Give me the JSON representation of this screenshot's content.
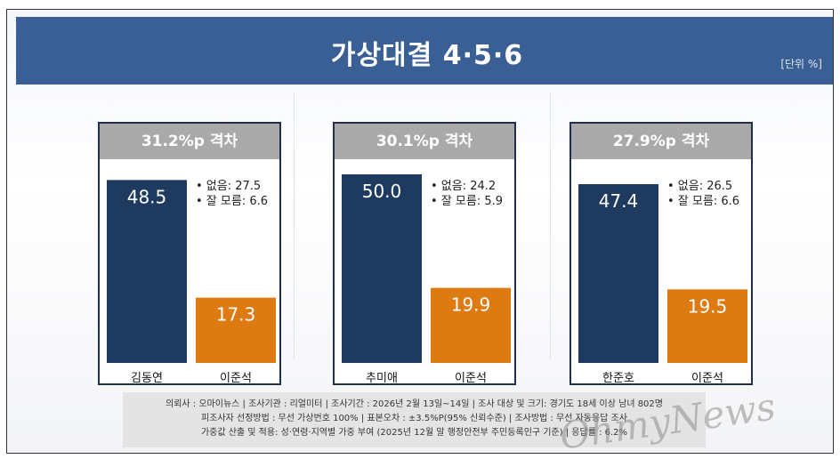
{
  "title": "가상대결 4·5·6",
  "unit": "[단위 %]",
  "chart_data": [
    {
      "type": "bar",
      "gap_label": "31.2%p 격차",
      "categories": [
        "김동연",
        "이준석"
      ],
      "values": [
        48.5,
        17.3
      ],
      "value_labels": [
        "48.5",
        "17.3"
      ],
      "notes": [
        "• 없음: 27.5",
        "• 잘 모름: 6.6"
      ],
      "colors": [
        "#1f3a5f",
        "#dd7a12"
      ],
      "ylim": [
        0,
        50
      ]
    },
    {
      "type": "bar",
      "gap_label": "30.1%p 격차",
      "categories": [
        "추미애",
        "이준석"
      ],
      "values": [
        50.0,
        19.9
      ],
      "value_labels": [
        "50.0",
        "19.9"
      ],
      "notes": [
        "• 없음: 24.2",
        "• 잘 모름: 5.9"
      ],
      "colors": [
        "#1f3a5f",
        "#dd7a12"
      ],
      "ylim": [
        0,
        50
      ]
    },
    {
      "type": "bar",
      "gap_label": "27.9%p 격차",
      "categories": [
        "한준호",
        "이준석"
      ],
      "values": [
        47.4,
        19.5
      ],
      "value_labels": [
        "47.4",
        "19.5"
      ],
      "notes": [
        "• 없음: 26.5",
        "• 잘 모름: 6.6"
      ],
      "colors": [
        "#1f3a5f",
        "#dd7a12"
      ],
      "ylim": [
        0,
        50
      ]
    }
  ],
  "footer": {
    "line1": "의뢰사 : 오마이뉴스 | 조사기관 : 리얼미터 | 조사기간 : 2026년 2월 13일~14일 | 조사 대상 및 크기: 경기도 18세 이상 남녀 802명",
    "line2": "피조사자 선정방법 : 무선 가상번호 100% | 표본오차 : ±3.5%P(95% 신뢰수준) | 조사방법 : 무선 자동응답 조사",
    "line3": "가중값 산출 및 적용: 성·연령·지역별 가중 부여 (2025년 12월 말 행정안전부 주민등록인구 기준) | 응답률 : 6.2%"
  },
  "logo": "OhmyNews"
}
